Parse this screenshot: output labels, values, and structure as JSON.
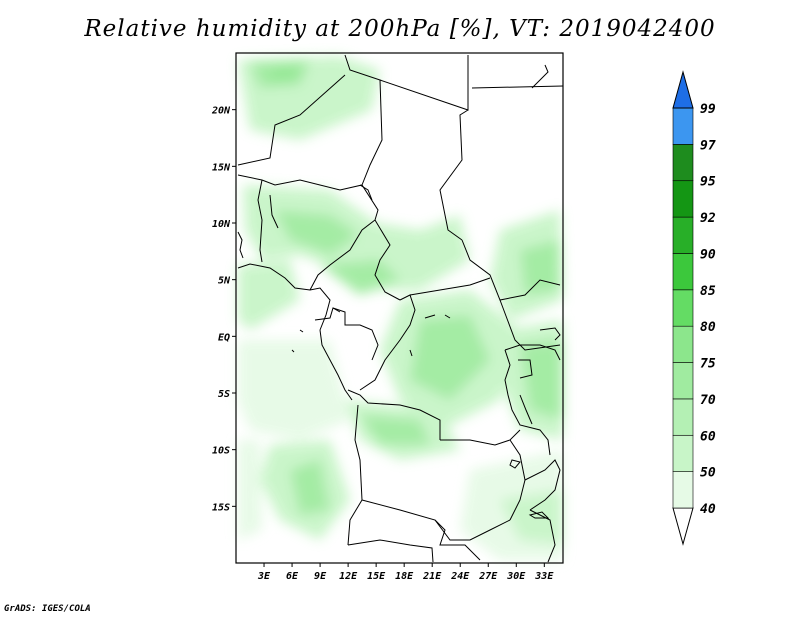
{
  "title": "Relative humidity at 200hPa [%], VT: 2019042400",
  "credit": "GrADS: IGES/COLA",
  "map": {
    "lon_range": [
      0,
      35
    ],
    "lat_range": [
      -20,
      25
    ],
    "lat_ticks": [
      {
        "value": 20,
        "label": "20N"
      },
      {
        "value": 15,
        "label": "15N"
      },
      {
        "value": 10,
        "label": "10N"
      },
      {
        "value": 5,
        "label": "5N"
      },
      {
        "value": 0,
        "label": "EQ"
      },
      {
        "value": -5,
        "label": "5S"
      },
      {
        "value": -10,
        "label": "10S"
      },
      {
        "value": -15,
        "label": "15S"
      }
    ],
    "lon_ticks": [
      {
        "value": 3,
        "label": "3E"
      },
      {
        "value": 6,
        "label": "6E"
      },
      {
        "value": 9,
        "label": "9E"
      },
      {
        "value": 12,
        "label": "12E"
      },
      {
        "value": 15,
        "label": "15E"
      },
      {
        "value": 18,
        "label": "18E"
      },
      {
        "value": 21,
        "label": "21E"
      },
      {
        "value": 24,
        "label": "24E"
      },
      {
        "value": 27,
        "label": "27E"
      },
      {
        "value": 30,
        "label": "30E"
      },
      {
        "value": 33,
        "label": "33E"
      }
    ]
  },
  "colorbar": {
    "levels": [
      {
        "label": "40",
        "color": "#e6fae6"
      },
      {
        "label": "50",
        "color": "#c8f5c8"
      },
      {
        "label": "60",
        "color": "#b4f0b4"
      },
      {
        "label": "70",
        "color": "#a0eba0"
      },
      {
        "label": "75",
        "color": "#8ce68c"
      },
      {
        "label": "80",
        "color": "#64dc64"
      },
      {
        "label": "85",
        "color": "#3cc83c"
      },
      {
        "label": "90",
        "color": "#28af28"
      },
      {
        "label": "92",
        "color": "#149614"
      },
      {
        "label": "95",
        "color": "#1e8c1e"
      },
      {
        "label": "97",
        "color": "#3c96f0"
      },
      {
        "label": "99",
        "color": "#1e6ee6"
      }
    ],
    "top_color": "#1a5ad2"
  }
}
